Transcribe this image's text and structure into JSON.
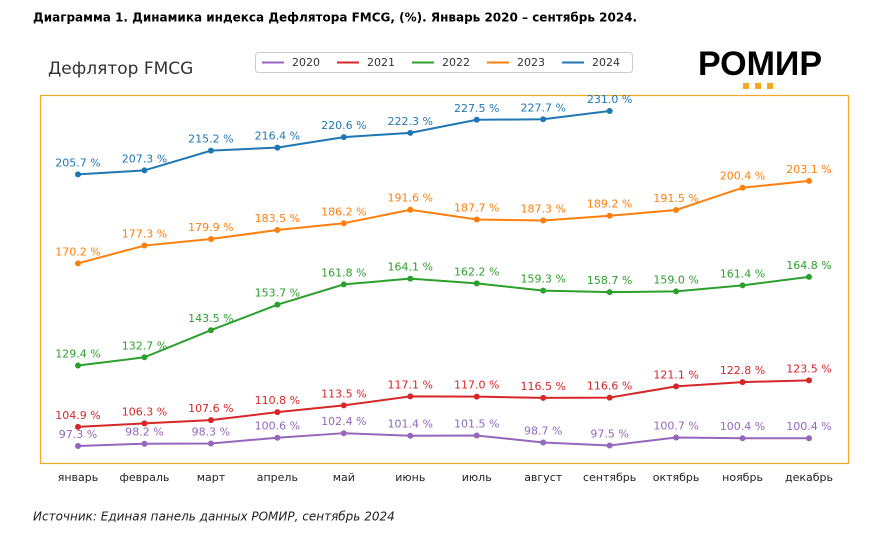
{
  "header": {
    "title": "Диаграмма 1. Динамика индекса Дефлятора FMCG, (%). Январь 2020 – сентябрь 2024."
  },
  "logo": "РОМИР",
  "source": "Источник: Единая панель данных РОМИР, сентябрь 2024",
  "chart_data": {
    "type": "line",
    "title": "Дефлятор FMCG",
    "categories": [
      "январь",
      "февраль",
      "март",
      "апрель",
      "май",
      "июнь",
      "июль",
      "август",
      "сентябрь",
      "октябрь",
      "ноябрь",
      "декабрь"
    ],
    "ylim": [
      90.5,
      237.4
    ],
    "legend": "top",
    "series": [
      {
        "name": "2020",
        "color": "#9467bd",
        "values": [
          97.3,
          98.2,
          98.3,
          100.6,
          102.4,
          101.4,
          101.5,
          98.7,
          97.5,
          100.7,
          100.4,
          100.4
        ],
        "value_labels": [
          "97.3 %",
          "98.2 %",
          "98.3 %",
          "100.6 %",
          "102.4 %",
          "101.4 %",
          "101.5 %",
          "98.7 %",
          "97.5 %",
          "100.7 %",
          "100.4 %",
          "100.4 %"
        ]
      },
      {
        "name": "2021",
        "color": "#d62728",
        "values": [
          104.9,
          106.3,
          107.6,
          110.8,
          113.5,
          117.1,
          117.0,
          116.5,
          116.6,
          121.1,
          122.8,
          123.5
        ],
        "value_labels": [
          "104.9 %",
          "106.3 %",
          "107.6 %",
          "110.8 %",
          "113.5 %",
          "117.1 %",
          "117.0 %",
          "116.5 %",
          "116.6 %",
          "121.1 %",
          "122.8 %",
          "123.5 %"
        ]
      },
      {
        "name": "2022",
        "color": "#2ca02c",
        "values": [
          129.4,
          132.7,
          143.5,
          153.7,
          161.8,
          164.1,
          162.2,
          159.3,
          158.7,
          159.0,
          161.4,
          164.8
        ],
        "value_labels": [
          "129.4 %",
          "132.7 %",
          "143.5 %",
          "153.7 %",
          "161.8 %",
          "164.1 %",
          "162.2 %",
          "159.3 %",
          "158.7 %",
          "159.0 %",
          "161.4 %",
          "164.8 %"
        ]
      },
      {
        "name": "2023",
        "color": "#ff7f0e",
        "values": [
          170.2,
          177.3,
          179.9,
          183.5,
          186.2,
          191.6,
          187.7,
          187.3,
          189.2,
          191.5,
          200.4,
          203.1
        ],
        "value_labels": [
          "170.2 %",
          "177.3 %",
          "179.9 %",
          "183.5 %",
          "186.2 %",
          "191.6 %",
          "187.7 %",
          "187.3 %",
          "189.2 %",
          "191.5 %",
          "200.4 %",
          "203.1 %"
        ]
      },
      {
        "name": "2024",
        "color": "#1f77b4",
        "values": [
          205.7,
          207.3,
          215.2,
          216.4,
          220.6,
          222.3,
          227.5,
          227.7,
          231.0,
          null,
          null,
          null
        ],
        "value_labels": [
          "205.7 %",
          "207.3 %",
          "215.2 %",
          "216.4 %",
          "220.6 %",
          "222.3 %",
          "227.5 %",
          "227.7 %",
          "231.0 %",
          null,
          null,
          null
        ]
      }
    ]
  }
}
